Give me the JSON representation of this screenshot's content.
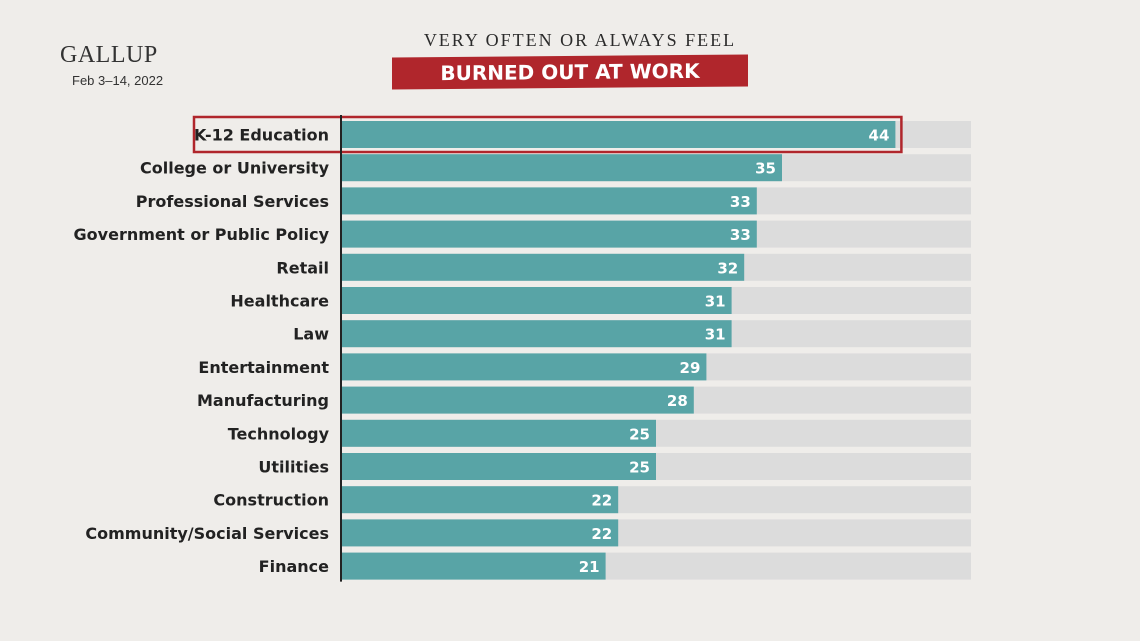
{
  "brand": {
    "logo": "GALLUP",
    "date": "Feb 3–14, 2022"
  },
  "header": {
    "kicker": "VERY OFTEN OR ALWAYS FEEL",
    "banner": "BURNED OUT AT WORK"
  },
  "colors": {
    "bar": "#58a4a6",
    "track": "#dcdcdc",
    "highlight": "#b0262c",
    "banner": "#b0262c",
    "background": "#efedea"
  },
  "chart_data": {
    "type": "bar",
    "orientation": "horizontal",
    "categories": [
      "K-12 Education",
      "College or University",
      "Professional Services",
      "Government or Public Policy",
      "Retail",
      "Healthcare",
      "Law",
      "Entertainment",
      "Manufacturing",
      "Technology",
      "Utilities",
      "Construction",
      "Community/Social Services",
      "Finance"
    ],
    "values": [
      44,
      35,
      33,
      33,
      32,
      31,
      31,
      29,
      28,
      25,
      25,
      22,
      22,
      21
    ],
    "xlim": [
      0,
      50
    ],
    "highlighted_category": "K-12 Education",
    "data_labels": true,
    "grid": false,
    "legend": "none"
  }
}
